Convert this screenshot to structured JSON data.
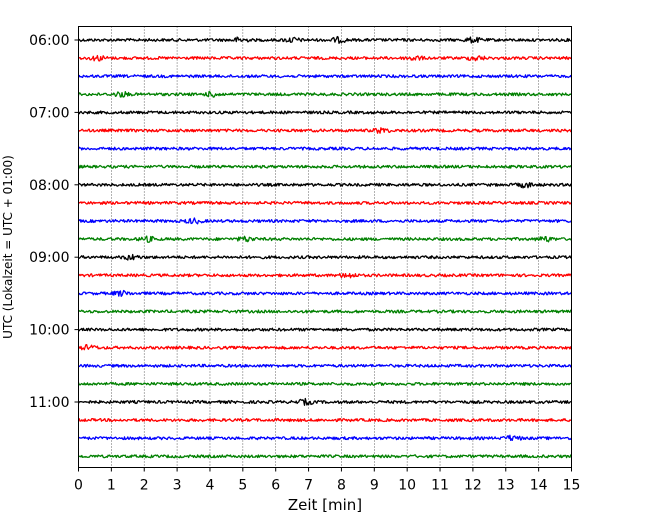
{
  "chart_data": {
    "type": "line",
    "title": "",
    "xlabel": "Zeit  [min]",
    "ylabel": "UTC (Lokalzeit = UTC + 01:00)",
    "xlim": [
      0,
      15
    ],
    "x_ticks": [
      "0",
      "1",
      "2",
      "3",
      "4",
      "5",
      "6",
      "7",
      "8",
      "9",
      "10",
      "11",
      "12",
      "13",
      "14",
      "15"
    ],
    "y_ticks": [
      "06:00",
      "07:00",
      "08:00",
      "09:00",
      "10:00",
      "11:00"
    ],
    "grid": "vertical dotted lines at each minute",
    "legend": "none",
    "trace_interval_min": 15,
    "trace_colors": [
      "#000000",
      "#ff0000",
      "#0000ff",
      "#008000"
    ],
    "series": [
      {
        "start": "06:00",
        "color": "#000000",
        "events_min": [
          4.9,
          6.5,
          7.9,
          12.0
        ]
      },
      {
        "start": "06:15",
        "color": "#ff0000",
        "events_min": [
          0.6,
          10.2,
          12.1
        ]
      },
      {
        "start": "06:30",
        "color": "#0000ff",
        "events_min": []
      },
      {
        "start": "06:45",
        "color": "#008000",
        "events_min": [
          1.3,
          4.1
        ]
      },
      {
        "start": "07:00",
        "color": "#000000",
        "events_min": []
      },
      {
        "start": "07:15",
        "color": "#ff0000",
        "events_min": [
          9.2
        ]
      },
      {
        "start": "07:30",
        "color": "#0000ff",
        "events_min": []
      },
      {
        "start": "07:45",
        "color": "#008000",
        "events_min": []
      },
      {
        "start": "08:00",
        "color": "#000000",
        "events_min": [
          13.6
        ]
      },
      {
        "start": "08:15",
        "color": "#ff0000",
        "events_min": []
      },
      {
        "start": "08:30",
        "color": "#0000ff",
        "events_min": [
          3.5
        ]
      },
      {
        "start": "08:45",
        "color": "#008000",
        "events_min": [
          2.1,
          5.1,
          14.2
        ]
      },
      {
        "start": "09:00",
        "color": "#000000",
        "events_min": [
          1.6
        ]
      },
      {
        "start": "09:15",
        "color": "#ff0000",
        "events_min": [
          8.2
        ]
      },
      {
        "start": "09:30",
        "color": "#0000ff",
        "events_min": [
          1.3
        ]
      },
      {
        "start": "09:45",
        "color": "#008000",
        "events_min": []
      },
      {
        "start": "10:00",
        "color": "#000000",
        "events_min": []
      },
      {
        "start": "10:15",
        "color": "#ff0000",
        "events_min": [
          0.3
        ]
      },
      {
        "start": "10:30",
        "color": "#0000ff",
        "events_min": []
      },
      {
        "start": "10:45",
        "color": "#008000",
        "events_min": []
      },
      {
        "start": "11:00",
        "color": "#000000",
        "events_min": [
          6.9
        ]
      },
      {
        "start": "11:15",
        "color": "#ff0000",
        "events_min": []
      },
      {
        "start": "11:30",
        "color": "#0000ff",
        "events_min": [
          13.2
        ]
      },
      {
        "start": "11:45",
        "color": "#008000",
        "events_min": []
      }
    ]
  }
}
